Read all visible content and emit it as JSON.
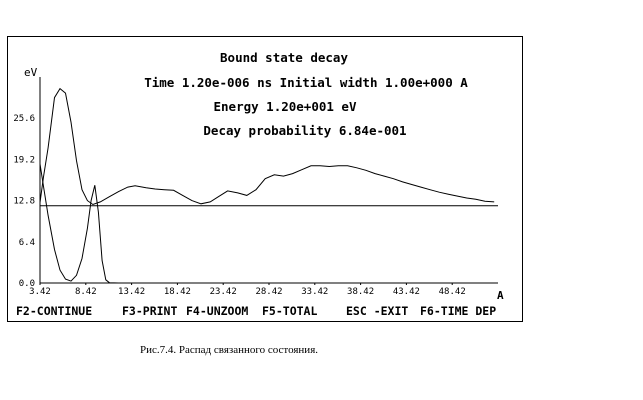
{
  "window": {
    "title_lines": [
      "Bound state decay",
      "Time 1.20e-006 ns Initial width 1.00e+000 A",
      "Energy 1.20e+001 eV",
      "Decay probability 6.84e-001"
    ]
  },
  "function_keys": [
    "F2-CONTINUE",
    "F3-PRINT",
    "F4-UNZOOM",
    "F5-TOTAL",
    "ESC -EXIT",
    "F6-TIME DEP"
  ],
  "caption": "Рис.7.4. Распад связанного состояния.",
  "chart_data": {
    "type": "line",
    "ylabel": "eV",
    "xlabel": "A",
    "y_ticks": [
      "0.0",
      "6.4",
      "12.8",
      "19.2",
      "25.6"
    ],
    "x_ticks": [
      "3.42",
      "8.42",
      "13.42",
      "18.42",
      "23.42",
      "28.42",
      "33.42",
      "38.42",
      "43.42",
      "48.42"
    ],
    "xlim": [
      3.42,
      53.42
    ],
    "ylim": [
      0,
      32
    ],
    "reference_line_y": 12.0,
    "series": [
      {
        "values": [
          [
            3.42,
            12.5
          ],
          [
            3.8,
            16.5
          ],
          [
            4.3,
            21.0
          ],
          [
            5.0,
            28.8
          ],
          [
            5.6,
            30.2
          ],
          [
            6.2,
            29.5
          ],
          [
            6.8,
            25.0
          ],
          [
            7.4,
            19.0
          ],
          [
            8.0,
            14.5
          ],
          [
            8.6,
            12.8
          ],
          [
            9.2,
            12.2
          ],
          [
            10.0,
            12.6
          ],
          [
            11.0,
            13.4
          ],
          [
            12.0,
            14.2
          ],
          [
            13.0,
            14.9
          ],
          [
            13.8,
            15.1
          ],
          [
            15.0,
            14.8
          ],
          [
            16.0,
            14.6
          ],
          [
            17.0,
            14.5
          ],
          [
            18.0,
            14.4
          ],
          [
            19.0,
            13.6
          ],
          [
            20.0,
            12.8
          ],
          [
            21.0,
            12.3
          ],
          [
            22.0,
            12.6
          ],
          [
            23.0,
            13.5
          ],
          [
            23.9,
            14.3
          ],
          [
            25.0,
            14.0
          ],
          [
            26.0,
            13.6
          ],
          [
            27.0,
            14.5
          ],
          [
            28.0,
            16.2
          ],
          [
            29.0,
            16.8
          ],
          [
            30.0,
            16.6
          ],
          [
            31.0,
            17.0
          ],
          [
            32.0,
            17.6
          ],
          [
            33.0,
            18.2
          ],
          [
            34.0,
            18.2
          ],
          [
            35.0,
            18.1
          ],
          [
            36.0,
            18.2
          ],
          [
            37.0,
            18.2
          ],
          [
            38.0,
            17.9
          ],
          [
            39.0,
            17.5
          ],
          [
            40.0,
            17.0
          ],
          [
            41.0,
            16.6
          ],
          [
            42.0,
            16.2
          ],
          [
            43.0,
            15.7
          ],
          [
            44.0,
            15.3
          ],
          [
            45.0,
            14.9
          ],
          [
            46.0,
            14.5
          ],
          [
            47.0,
            14.1
          ],
          [
            48.0,
            13.8
          ],
          [
            49.0,
            13.5
          ],
          [
            50.0,
            13.2
          ],
          [
            51.0,
            13.0
          ],
          [
            52.0,
            12.7
          ],
          [
            53.0,
            12.6
          ]
        ]
      },
      {
        "values": [
          [
            3.42,
            18.5
          ],
          [
            3.8,
            15.0
          ],
          [
            4.3,
            10.5
          ],
          [
            5.0,
            5.2
          ],
          [
            5.6,
            2.0
          ],
          [
            6.2,
            0.6
          ],
          [
            6.8,
            0.3
          ],
          [
            7.4,
            1.2
          ],
          [
            8.0,
            3.8
          ],
          [
            8.6,
            8.5
          ],
          [
            9.0,
            12.8
          ],
          [
            9.4,
            15.2
          ],
          [
            9.8,
            11.0
          ],
          [
            10.2,
            3.5
          ],
          [
            10.6,
            0.5
          ],
          [
            11.0,
            0.05
          ],
          [
            12.0,
            0.0
          ],
          [
            53.0,
            0.0
          ]
        ]
      }
    ]
  }
}
